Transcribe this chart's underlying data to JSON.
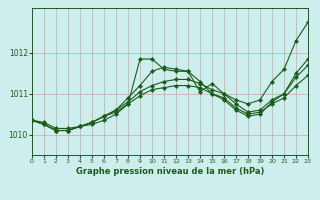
{
  "background_color": "#ceeeed",
  "grid_color": "#aad8d6",
  "line_color": "#1a5c1a",
  "title": "Graphe pression niveau de la mer (hPa)",
  "xlim": [
    0,
    23
  ],
  "ylim": [
    1009.5,
    1013.1
  ],
  "yticks": [
    1010,
    1011,
    1012
  ],
  "series": [
    [
      1010.35,
      1010.3,
      1010.15,
      1010.15,
      1010.2,
      1010.25,
      1010.35,
      1010.5,
      1010.75,
      1011.85,
      1011.85,
      1011.6,
      1011.55,
      1011.55,
      1011.05,
      1011.25,
      1011.0,
      1010.85,
      1010.75,
      1010.85,
      1011.3,
      1011.6,
      1012.3,
      1012.75
    ],
    [
      1010.35,
      1010.25,
      1010.1,
      1010.1,
      1010.2,
      1010.3,
      1010.45,
      1010.6,
      1010.9,
      1011.2,
      1011.55,
      1011.65,
      1011.6,
      1011.55,
      1011.3,
      1011.0,
      1010.85,
      1010.6,
      1010.45,
      1010.5,
      1010.8,
      1011.0,
      1011.5,
      1011.85
    ],
    [
      1010.35,
      1010.25,
      1010.1,
      1010.1,
      1010.2,
      1010.3,
      1010.45,
      1010.6,
      1010.8,
      1011.05,
      1011.2,
      1011.3,
      1011.35,
      1011.35,
      1011.25,
      1011.1,
      1011.0,
      1010.75,
      1010.55,
      1010.6,
      1010.85,
      1011.0,
      1011.4,
      1011.7
    ],
    [
      1010.35,
      1010.25,
      1010.1,
      1010.1,
      1010.2,
      1010.3,
      1010.45,
      1010.55,
      1010.75,
      1010.95,
      1011.1,
      1011.15,
      1011.2,
      1011.2,
      1011.15,
      1011.0,
      1010.9,
      1010.65,
      1010.5,
      1010.55,
      1010.75,
      1010.9,
      1011.2,
      1011.45
    ]
  ]
}
